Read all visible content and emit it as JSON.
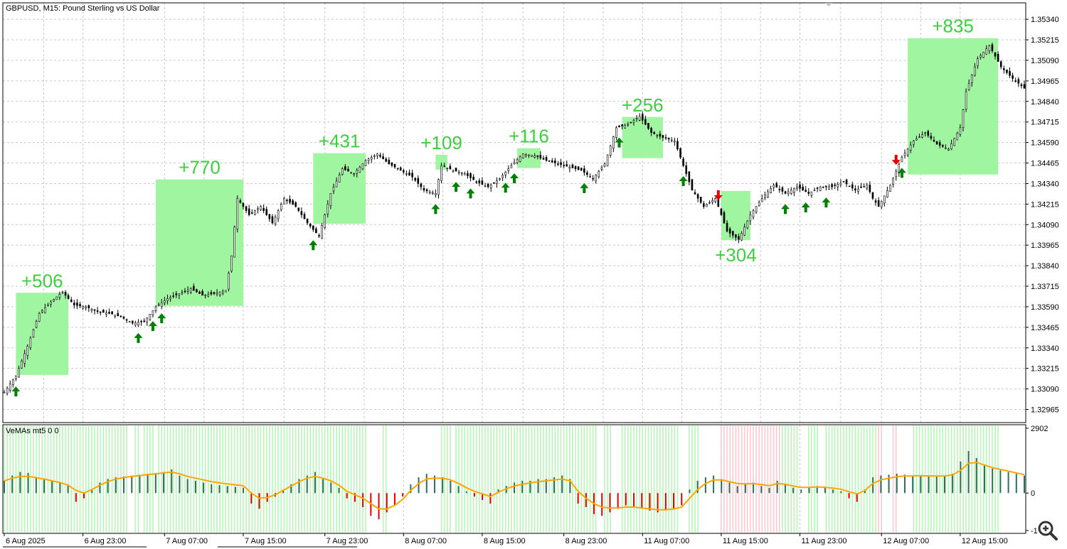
{
  "window": {
    "title": "GBPUSD, M15:  Pound Sterling vs US Dollar",
    "indicator_label": "VeMAs mt5 0 0"
  },
  "colors": {
    "background": "#ffffff",
    "grid": "#c8c8c8",
    "candles": "#000000",
    "profit_box": "#a0f5a0",
    "profit_text": "#3ecf3e",
    "buy_arrow": "#008000",
    "sell_arrow": "#e00000",
    "volume_bar": "#2f6e58",
    "negative_bar": "#e00000",
    "green_zone": "#b6f5b6",
    "red_zone": "#ffc8d2",
    "ma_line": "#ffa500"
  },
  "zoom_icon": "magnifier-plus-icon",
  "chart_data": [
    {
      "type": "candlestick",
      "title": "GBPUSD, M15:  Pound Sterling vs US Dollar",
      "y_ticks": [
        "1.35340",
        "1.35215",
        "1.35090",
        "1.34965",
        "1.34840",
        "1.34715",
        "1.34590",
        "1.34465",
        "1.34340",
        "1.34215",
        "1.34090",
        "1.33965",
        "1.33840",
        "1.33715",
        "1.33590",
        "1.33465",
        "1.33340",
        "1.33215",
        "1.33090",
        "1.32965"
      ],
      "ylim": [
        1.32885,
        1.3544
      ],
      "x_ticks": [
        "6 Aug 2025",
        "6 Aug 23:00",
        "7 Aug 07:00",
        "7 Aug 15:00",
        "7 Aug 23:00",
        "8 Aug 07:00",
        "8 Aug 15:00",
        "8 Aug 23:00",
        "11 Aug 07:00",
        "11 Aug 15:00",
        "11 Aug 23:00",
        "12 Aug 07:00",
        "12 Aug 15:00"
      ],
      "price_path": [
        [
          0,
          1.3307
        ],
        [
          4,
          1.3317
        ],
        [
          8,
          1.3335
        ],
        [
          12,
          1.3355
        ],
        [
          16,
          1.3362
        ],
        [
          20,
          1.3368
        ],
        [
          24,
          1.336
        ],
        [
          28,
          1.3359
        ],
        [
          32,
          1.3356
        ],
        [
          36,
          1.3355
        ],
        [
          40,
          1.3353
        ],
        [
          44,
          1.3349
        ],
        [
          48,
          1.335
        ],
        [
          52,
          1.3359
        ],
        [
          56,
          1.3364
        ],
        [
          60,
          1.3367
        ],
        [
          64,
          1.337
        ],
        [
          68,
          1.3366
        ],
        [
          72,
          1.3367
        ],
        [
          76,
          1.3369
        ],
        [
          78,
          1.339
        ],
        [
          80,
          1.3425
        ],
        [
          84,
          1.3415
        ],
        [
          88,
          1.342
        ],
        [
          92,
          1.341
        ],
        [
          96,
          1.3425
        ],
        [
          100,
          1.342
        ],
        [
          104,
          1.341
        ],
        [
          108,
          1.3402
        ],
        [
          112,
          1.3428
        ],
        [
          116,
          1.3443
        ],
        [
          120,
          1.344
        ],
        [
          124,
          1.3448
        ],
        [
          128,
          1.3452
        ],
        [
          132,
          1.3446
        ],
        [
          136,
          1.3442
        ],
        [
          140,
          1.3438
        ],
        [
          144,
          1.343
        ],
        [
          148,
          1.3428
        ],
        [
          150,
          1.3445
        ],
        [
          154,
          1.3442
        ],
        [
          158,
          1.344
        ],
        [
          162,
          1.3435
        ],
        [
          166,
          1.3432
        ],
        [
          170,
          1.3437
        ],
        [
          174,
          1.3445
        ],
        [
          178,
          1.3452
        ],
        [
          182,
          1.3451
        ],
        [
          186,
          1.3448
        ],
        [
          190,
          1.3446
        ],
        [
          194,
          1.3444
        ],
        [
          198,
          1.3442
        ],
        [
          202,
          1.3437
        ],
        [
          206,
          1.3446
        ],
        [
          210,
          1.3468
        ],
        [
          214,
          1.347
        ],
        [
          218,
          1.3475
        ],
        [
          222,
          1.3465
        ],
        [
          226,
          1.3462
        ],
        [
          230,
          1.346
        ],
        [
          232,
          1.345
        ],
        [
          236,
          1.343
        ],
        [
          240,
          1.342
        ],
        [
          244,
          1.3425
        ],
        [
          248,
          1.3405
        ],
        [
          252,
          1.34
        ],
        [
          256,
          1.3415
        ],
        [
          260,
          1.3425
        ],
        [
          264,
          1.3433
        ],
        [
          268,
          1.3428
        ],
        [
          272,
          1.3432
        ],
        [
          276,
          1.3428
        ],
        [
          280,
          1.3432
        ],
        [
          284,
          1.3432
        ],
        [
          288,
          1.3435
        ],
        [
          292,
          1.343
        ],
        [
          296,
          1.3433
        ],
        [
          298,
          1.3425
        ],
        [
          300,
          1.342
        ],
        [
          304,
          1.3433
        ],
        [
          308,
          1.345
        ],
        [
          312,
          1.346
        ],
        [
          316,
          1.3465
        ],
        [
          320,
          1.3458
        ],
        [
          324,
          1.3455
        ],
        [
          328,
          1.3468
        ],
        [
          330,
          1.349
        ],
        [
          334,
          1.351
        ],
        [
          338,
          1.3518
        ],
        [
          342,
          1.3505
        ],
        [
          346,
          1.3498
        ],
        [
          350,
          1.3492
        ]
      ],
      "trades": [
        {
          "label": "+506",
          "start_bar": 4,
          "end_bar": 22,
          "low": 1.33175,
          "high": 1.33675
        },
        {
          "label": "+770",
          "start_bar": 52,
          "end_bar": 82,
          "low": 1.33595,
          "high": 1.34365
        },
        {
          "label": "+431",
          "start_bar": 106,
          "end_bar": 124,
          "low": 1.34095,
          "high": 1.34525
        },
        {
          "label": "+109",
          "start_bar": 148,
          "end_bar": 152,
          "low": 1.34425,
          "high": 1.34515
        },
        {
          "label": "+116",
          "start_bar": 176,
          "end_bar": 184,
          "low": 1.34435,
          "high": 1.34555
        },
        {
          "label": "+256",
          "start_bar": 212,
          "end_bar": 226,
          "low": 1.34495,
          "high": 1.34745
        },
        {
          "label": "+304",
          "start_bar": 246,
          "end_bar": 256,
          "low": 1.33995,
          "high": 1.34295
        },
        {
          "label": "+835",
          "start_bar": 310,
          "end_bar": 341,
          "low": 1.34395,
          "high": 1.35225
        }
      ],
      "buy_arrows": [
        4,
        46,
        51,
        54,
        106,
        148,
        155,
        160,
        172,
        175,
        199,
        211,
        233,
        268,
        275,
        282,
        308
      ],
      "sell_arrows": [
        245,
        306
      ]
    },
    {
      "type": "bar",
      "title": "VeMAs mt5 0 0",
      "y_ticks": [
        "2902",
        "0",
        "-1"
      ],
      "ylim": [
        -2300,
        3900
      ],
      "values": [
        700,
        1000,
        1200,
        1150,
        900,
        800,
        700,
        600,
        500,
        -500,
        -300,
        200,
        600,
        800,
        900,
        950,
        1000,
        1050,
        1100,
        1150,
        1200,
        1350,
        1000,
        800,
        700,
        600,
        500,
        450,
        400,
        350,
        300,
        -600,
        -900,
        -500,
        -200,
        200,
        500,
        800,
        1000,
        1200,
        800,
        600,
        300,
        -300,
        -500,
        -800,
        -1300,
        -1500,
        -1100,
        -700,
        -200,
        500,
        900,
        1100,
        1000,
        900,
        700,
        400,
        100,
        -200,
        -400,
        -600,
        200,
        400,
        600,
        700,
        700,
        800,
        800,
        900,
        1000,
        800,
        -600,
        -800,
        -1200,
        -1300,
        -1100,
        -900,
        -700,
        -800,
        -900,
        -1000,
        -1100,
        -1000,
        -900,
        -700,
        200,
        700,
        900,
        1000,
        800,
        600,
        400,
        500,
        600,
        400,
        300,
        700,
        500,
        300,
        200,
        300,
        400,
        300,
        200,
        100,
        -300,
        -500,
        200,
        900,
        1000,
        1050,
        1100,
        1050,
        1000,
        1000,
        950,
        950,
        1000,
        1100,
        1800,
        2400,
        2000,
        1600,
        1400,
        1300,
        1200,
        1100,
        1000
      ],
      "ma_line": [
        700,
        850,
        950,
        950,
        880,
        800,
        700,
        600,
        450,
        150,
        0,
        200,
        450,
        650,
        800,
        880,
        950,
        1000,
        1050,
        1100,
        1150,
        1200,
        1100,
        950,
        850,
        750,
        650,
        580,
        520,
        470,
        420,
        0,
        -300,
        -250,
        -100,
        150,
        400,
        650,
        850,
        950,
        850,
        700,
        450,
        100,
        -100,
        -300,
        -600,
        -900,
        -900,
        -700,
        -350,
        150,
        550,
        800,
        850,
        850,
        750,
        550,
        300,
        100,
        -50,
        -200,
        50,
        250,
        400,
        500,
        580,
        650,
        700,
        750,
        800,
        700,
        100,
        -300,
        -600,
        -800,
        -850,
        -850,
        -800,
        -800,
        -850,
        -900,
        -950,
        -950,
        -900,
        -800,
        -300,
        200,
        550,
        750,
        750,
        650,
        550,
        520,
        550,
        480,
        420,
        550,
        500,
        400,
        320,
        320,
        350,
        330,
        280,
        220,
        80,
        -50,
        150,
        550,
        750,
        850,
        930,
        970,
        980,
        990,
        980,
        970,
        980,
        1030,
        1300,
        1700,
        1750,
        1600,
        1450,
        1350,
        1250,
        1150,
        1050
      ],
      "green_zones": [
        [
          0,
          42
        ],
        [
          45,
          46
        ],
        [
          48,
          51
        ],
        [
          53,
          124
        ],
        [
          130,
          131
        ],
        [
          150,
          153
        ],
        [
          155,
          199
        ],
        [
          200,
          203
        ],
        [
          206,
          208
        ],
        [
          212,
          231
        ],
        [
          235,
          238
        ],
        [
          266,
          272
        ],
        [
          276,
          279
        ],
        [
          282,
          296
        ],
        [
          297,
          300
        ],
        [
          312,
          341
        ]
      ],
      "red_zones": [
        [
          246,
          266
        ],
        [
          300,
          301
        ],
        [
          305,
          306
        ]
      ]
    }
  ]
}
